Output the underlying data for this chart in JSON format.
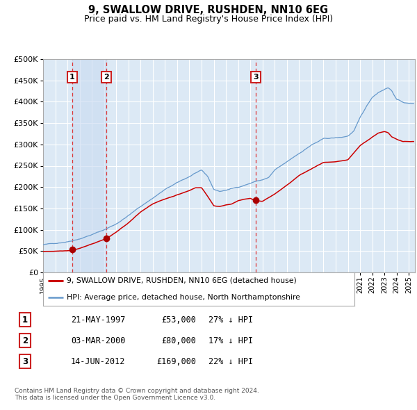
{
  "title": "9, SWALLOW DRIVE, RUSHDEN, NN10 6EG",
  "subtitle": "Price paid vs. HM Land Registry's House Price Index (HPI)",
  "bg_color": "#dce9f5",
  "grid_color": "#ffffff",
  "red_line_color": "#cc0000",
  "blue_line_color": "#6699cc",
  "transactions": [
    {
      "date_str": "21-MAY-1997",
      "date_num": 1997.38,
      "price": 53000,
      "label": "1",
      "hpi_pct": "27% ↓ HPI"
    },
    {
      "date_str": "03-MAR-2000",
      "date_num": 2000.17,
      "price": 80000,
      "label": "2",
      "hpi_pct": "17% ↓ HPI"
    },
    {
      "date_str": "14-JUN-2012",
      "date_num": 2012.45,
      "price": 169000,
      "label": "3",
      "hpi_pct": "22% ↓ HPI"
    }
  ],
  "xmin": 1995.0,
  "xmax": 2025.5,
  "ymin": 0,
  "ymax": 500000,
  "yticks": [
    0,
    50000,
    100000,
    150000,
    200000,
    250000,
    300000,
    350000,
    400000,
    450000,
    500000
  ],
  "legend_label_red": "9, SWALLOW DRIVE, RUSHDEN, NN10 6EG (detached house)",
  "legend_label_blue": "HPI: Average price, detached house, North Northamptonshire",
  "table_rows": [
    {
      "label": "1",
      "date": "21-MAY-1997",
      "price": "£53,000",
      "hpi": "27% ↓ HPI"
    },
    {
      "label": "2",
      "date": "03-MAR-2000",
      "price": "£80,000",
      "hpi": "17% ↓ HPI"
    },
    {
      "label": "3",
      "date": "14-JUN-2012",
      "price": "£169,000",
      "hpi": "22% ↓ HPI"
    }
  ],
  "footnote": "Contains HM Land Registry data © Crown copyright and database right 2024.\nThis data is licensed under the Open Government Licence v3.0."
}
